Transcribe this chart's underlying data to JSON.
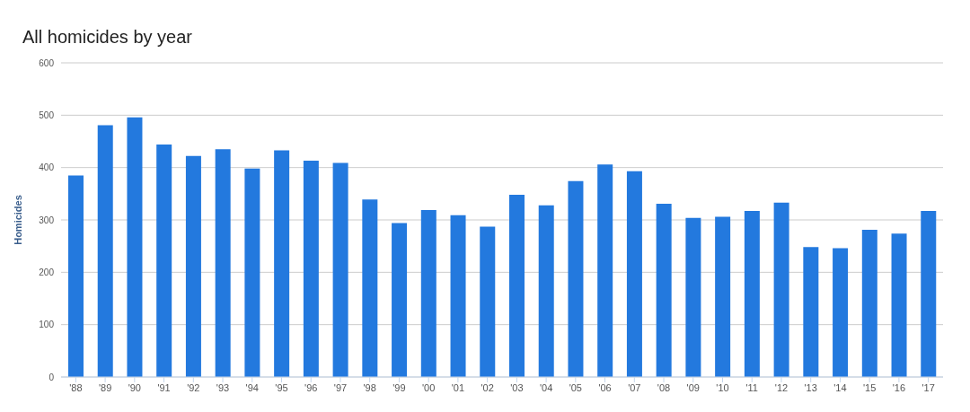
{
  "chart_data": {
    "type": "bar",
    "title": "All homicides by year",
    "ylabel": "Homicides",
    "categories": [
      "'88",
      "'89",
      "'90",
      "'91",
      "'92",
      "'93",
      "'94",
      "'95",
      "'96",
      "'97",
      "'98",
      "'99",
      "'00",
      "'01",
      "'02",
      "'03",
      "'04",
      "'05",
      "'06",
      "'07",
      "'08",
      "'09",
      "'10",
      "'11",
      "'12",
      "'13",
      "'14",
      "'15",
      "'16",
      "'17"
    ],
    "values": [
      385,
      481,
      496,
      444,
      422,
      435,
      398,
      433,
      413,
      409,
      339,
      294,
      319,
      309,
      287,
      348,
      328,
      374,
      406,
      393,
      331,
      304,
      306,
      317,
      333,
      248,
      246,
      281,
      274,
      317
    ],
    "color": "#2379de",
    "ylim": [
      0,
      600
    ],
    "yticks": [
      0,
      100,
      200,
      300,
      400,
      500,
      600
    ],
    "grid": "y"
  }
}
